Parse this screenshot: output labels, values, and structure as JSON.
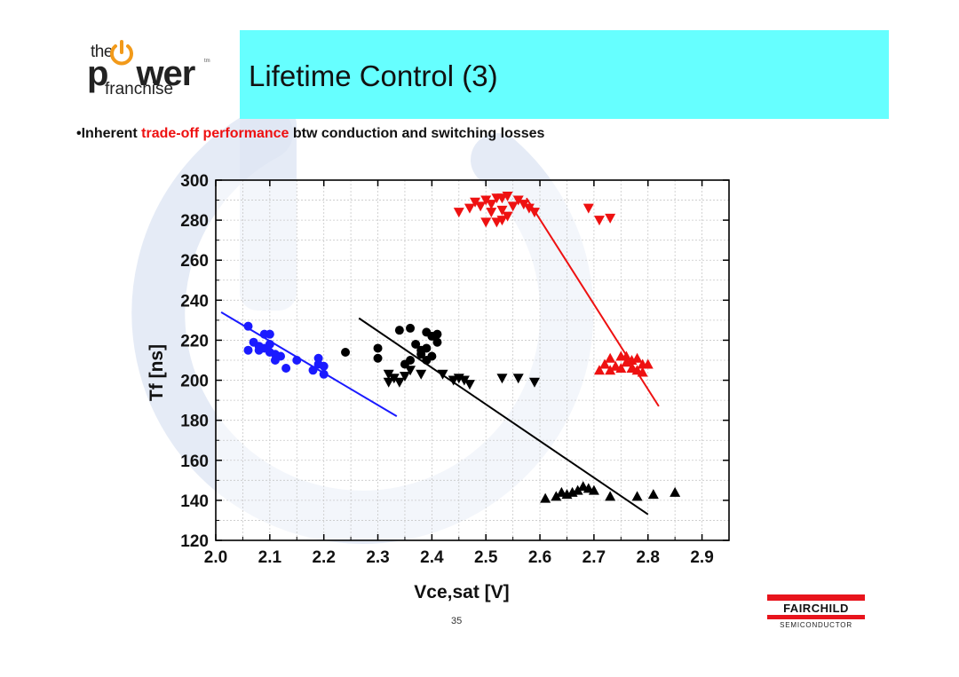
{
  "logo": {
    "line1": "the",
    "line2a": "p",
    "line2b": "wer",
    "tm": "tm",
    "line3": "franchise"
  },
  "slide": {
    "title": "Lifetime Control (3)",
    "bullet_prefix": "•Inherent ",
    "bullet_highlight": "trade-off performance",
    "bullet_suffix": " btw conduction and switching losses",
    "page_number": "35"
  },
  "brand": {
    "name": "FAIRCHILD",
    "sub": "SEMICONDUCTOR",
    "red": "#e8141c",
    "title_bg": "#66ffff",
    "highlight": "#ee1111"
  },
  "chart_data": {
    "type": "scatter",
    "xlabel": "Vce,sat [V]",
    "ylabel": "Tf [ns]",
    "xlim": [
      2.0,
      2.95
    ],
    "ylim": [
      120,
      300
    ],
    "xticks": [
      "2.0",
      "2.1",
      "2.2",
      "2.3",
      "2.4",
      "2.5",
      "2.6",
      "2.7",
      "2.8",
      "2.9"
    ],
    "yticks": [
      "120",
      "140",
      "160",
      "180",
      "200",
      "220",
      "240",
      "260",
      "280",
      "300"
    ],
    "grid": true,
    "series": [
      {
        "marker": "circle",
        "color": "#1a1aff",
        "points": [
          [
            2.06,
            227
          ],
          [
            2.07,
            219
          ],
          [
            2.08,
            215
          ],
          [
            2.06,
            215
          ],
          [
            2.09,
            216
          ],
          [
            2.1,
            223
          ],
          [
            2.09,
            223
          ],
          [
            2.1,
            218
          ],
          [
            2.11,
            213
          ],
          [
            2.12,
            212
          ],
          [
            2.11,
            210
          ],
          [
            2.13,
            206
          ],
          [
            2.15,
            210
          ],
          [
            2.18,
            205
          ],
          [
            2.19,
            208
          ],
          [
            2.19,
            211
          ],
          [
            2.2,
            203
          ],
          [
            2.2,
            207
          ],
          [
            2.1,
            214
          ],
          [
            2.08,
            217
          ]
        ],
        "fit": [
          [
            2.01,
            234
          ],
          [
            2.335,
            182
          ]
        ]
      },
      {
        "marker": "circle",
        "color": "#000000",
        "points": [
          [
            2.24,
            214
          ],
          [
            2.3,
            211
          ],
          [
            2.3,
            216
          ],
          [
            2.34,
            225
          ],
          [
            2.36,
            226
          ],
          [
            2.37,
            218
          ],
          [
            2.38,
            213
          ],
          [
            2.39,
            224
          ],
          [
            2.39,
            216
          ],
          [
            2.4,
            222
          ],
          [
            2.41,
            219
          ],
          [
            2.41,
            223
          ],
          [
            2.39,
            210
          ],
          [
            2.4,
            212
          ],
          [
            2.35,
            208
          ],
          [
            2.36,
            210
          ],
          [
            2.38,
            215
          ]
        ],
        "fit": [
          [
            2.265,
            231
          ],
          [
            2.8,
            133
          ]
        ]
      },
      {
        "marker": "triangle-down",
        "color": "#000000",
        "points": [
          [
            2.32,
            203
          ],
          [
            2.32,
            199
          ],
          [
            2.33,
            201
          ],
          [
            2.34,
            199
          ],
          [
            2.35,
            202
          ],
          [
            2.36,
            205
          ],
          [
            2.38,
            203
          ],
          [
            2.42,
            203
          ],
          [
            2.44,
            200
          ],
          [
            2.45,
            201
          ],
          [
            2.46,
            200
          ],
          [
            2.47,
            198
          ],
          [
            2.53,
            201
          ],
          [
            2.56,
            201
          ],
          [
            2.59,
            199
          ]
        ]
      },
      {
        "marker": "triangle-up",
        "color": "#000000",
        "points": [
          [
            2.61,
            141
          ],
          [
            2.63,
            142
          ],
          [
            2.64,
            144
          ],
          [
            2.65,
            143
          ],
          [
            2.66,
            144
          ],
          [
            2.67,
            145
          ],
          [
            2.68,
            147
          ],
          [
            2.69,
            146
          ],
          [
            2.7,
            145
          ],
          [
            2.73,
            142
          ],
          [
            2.78,
            142
          ],
          [
            2.81,
            143
          ],
          [
            2.85,
            144
          ]
        ]
      },
      {
        "marker": "triangle-down",
        "color": "#ee1111",
        "points": [
          [
            2.45,
            284
          ],
          [
            2.47,
            286
          ],
          [
            2.48,
            289
          ],
          [
            2.49,
            287
          ],
          [
            2.5,
            290
          ],
          [
            2.51,
            284
          ],
          [
            2.51,
            288
          ],
          [
            2.52,
            291
          ],
          [
            2.53,
            291
          ],
          [
            2.53,
            285
          ],
          [
            2.54,
            292
          ],
          [
            2.55,
            287
          ],
          [
            2.56,
            290
          ],
          [
            2.57,
            288
          ],
          [
            2.58,
            286
          ],
          [
            2.59,
            284
          ],
          [
            2.5,
            279
          ],
          [
            2.52,
            279
          ],
          [
            2.53,
            280
          ],
          [
            2.54,
            282
          ],
          [
            2.69,
            286
          ],
          [
            2.71,
            280
          ],
          [
            2.73,
            281
          ]
        ]
      },
      {
        "marker": "triangle-up",
        "color": "#ee1111",
        "points": [
          [
            2.71,
            205
          ],
          [
            2.72,
            208
          ],
          [
            2.73,
            211
          ],
          [
            2.74,
            207
          ],
          [
            2.75,
            212
          ],
          [
            2.76,
            209
          ],
          [
            2.76,
            212
          ],
          [
            2.77,
            206
          ],
          [
            2.78,
            211
          ],
          [
            2.78,
            205
          ],
          [
            2.79,
            208
          ],
          [
            2.8,
            208
          ],
          [
            2.73,
            205
          ],
          [
            2.75,
            206
          ],
          [
            2.77,
            210
          ],
          [
            2.79,
            204
          ]
        ],
        "fit": [
          [
            2.575,
            291
          ],
          [
            2.82,
            187
          ]
        ]
      }
    ]
  }
}
